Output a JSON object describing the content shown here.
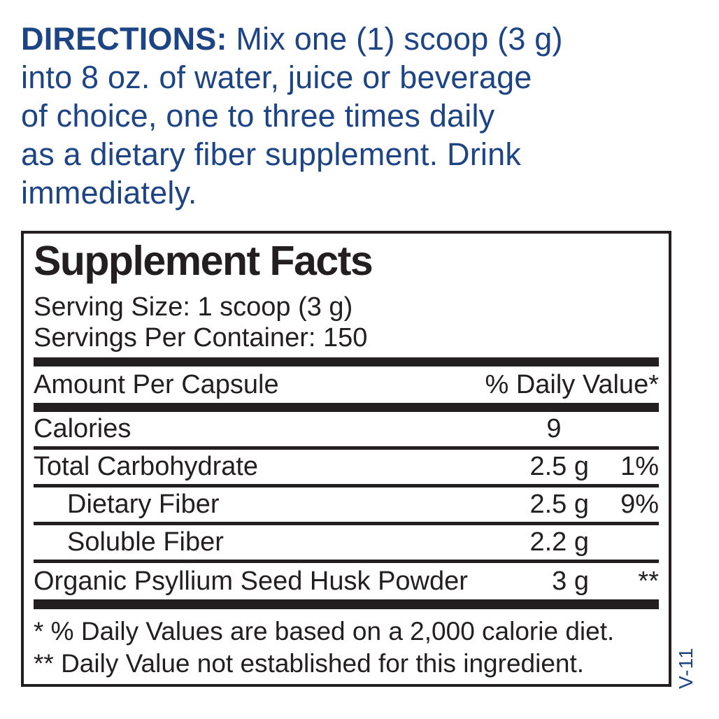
{
  "colors": {
    "brand_blue": "#1d4484",
    "label_black": "#231f20"
  },
  "directions": {
    "label": "DIRECTIONS:",
    "line1": " Mix one (1) scoop (3 g)",
    "line2": "into 8 oz. of water, juice or beverage",
    "line3": "of choice, one to three times daily",
    "line4": "as a dietary fiber supplement. Drink",
    "line5": "immediately."
  },
  "panel": {
    "title": "Supplement Facts",
    "serving_size": "Serving Size: 1 scoop (3 g)",
    "servings_per_container": "Servings Per Container: 150",
    "header": {
      "amount_label": "Amount Per Capsule",
      "dv_label": "% Daily Value*"
    },
    "rows": [
      {
        "name": "Calories",
        "amount": "9",
        "dv": ""
      },
      {
        "name": "Total Carbohydrate",
        "amount": "2.5 g",
        "dv": "1%"
      },
      {
        "name": "Dietary Fiber",
        "amount": "2.5 g",
        "dv": "9%"
      },
      {
        "name": "Soluble Fiber",
        "amount": "2.2 g",
        "dv": ""
      },
      {
        "name": "Organic Psyllium Seed Husk Powder",
        "amount": "3 g",
        "dv": "**"
      }
    ],
    "footnotes": [
      "* % Daily Values are based on a 2,000 calorie diet.",
      "** Daily Value not established for this ingredient."
    ]
  },
  "version_code": "V-11"
}
